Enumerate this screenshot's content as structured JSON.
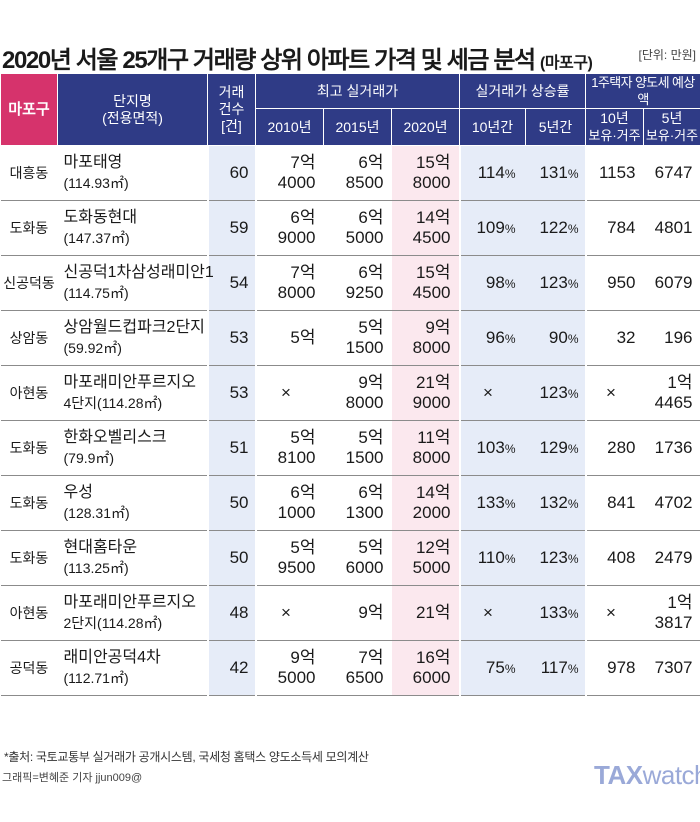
{
  "header": {
    "title": "2020년 서울 25개구 거래량 상위 아파트 가격 및 세금 분석",
    "title_sub": "(마포구)",
    "unit": "[단위: 만원]"
  },
  "table_header": {
    "district": "마포구",
    "name": "단지명",
    "name_sub": "(전용면적)",
    "count_1": "거래",
    "count_2": "건수",
    "count_3": "[건]",
    "price_group": "최고 실거래가",
    "y2010": "2010년",
    "y2015": "2015년",
    "y2020": "2020년",
    "rate_group": "실거래가 상승률",
    "r10": "10년간",
    "r5": "5년간",
    "tax_group": "1주택자 양도세 예상액",
    "t10_1": "10년",
    "t10_2": "보유·거주",
    "t5_1": "5년",
    "t5_2": "보유·거주"
  },
  "rows": [
    {
      "district": "대흥동",
      "name": "마포태영",
      "area": "(114.93㎡)",
      "count": "60",
      "p2010": [
        "7억",
        "4000"
      ],
      "p2015": [
        "6억",
        "8500"
      ],
      "p2020": [
        "15억",
        "8000"
      ],
      "r10": "114",
      "r5": "131",
      "t10": [
        "1153"
      ],
      "t5": [
        "6747"
      ]
    },
    {
      "district": "도화동",
      "name": "도화동현대",
      "area": "(147.37㎡)",
      "count": "59",
      "p2010": [
        "6억",
        "9000"
      ],
      "p2015": [
        "6억",
        "5000"
      ],
      "p2020": [
        "14억",
        "4500"
      ],
      "r10": "109",
      "r5": "122",
      "t10": [
        "784"
      ],
      "t5": [
        "4801"
      ]
    },
    {
      "district": "신공덕동",
      "name": "신공덕1차삼성래미안1",
      "area": "(114.75㎡)",
      "count": "54",
      "p2010": [
        "7억",
        "8000"
      ],
      "p2015": [
        "6억",
        "9250"
      ],
      "p2020": [
        "15억",
        "4500"
      ],
      "r10": "98",
      "r5": "123",
      "t10": [
        "950"
      ],
      "t5": [
        "6079"
      ]
    },
    {
      "district": "상암동",
      "name": "상암월드컵파크2단지",
      "area": "(59.92㎡)",
      "count": "53",
      "p2010": [
        "5억"
      ],
      "p2015": [
        "5억",
        "1500"
      ],
      "p2020": [
        "9억",
        "8000"
      ],
      "r10": "96",
      "r5": "90",
      "t10": [
        "32"
      ],
      "t5": [
        "196"
      ]
    },
    {
      "district": "아현동",
      "name": "마포래미안푸르지오",
      "area": "4단지(114.28㎡)",
      "count": "53",
      "p2010": [
        "×"
      ],
      "p2015": [
        "9억",
        "8000"
      ],
      "p2020": [
        "21억",
        "9000"
      ],
      "r10": "×",
      "r5": "123",
      "t10": [
        "×"
      ],
      "t5": [
        "1억",
        "4465"
      ]
    },
    {
      "district": "도화동",
      "name": "한화오벨리스크",
      "area": "(79.9㎡)",
      "count": "51",
      "p2010": [
        "5억",
        "8100"
      ],
      "p2015": [
        "5억",
        "1500"
      ],
      "p2020": [
        "11억",
        "8000"
      ],
      "r10": "103",
      "r5": "129",
      "t10": [
        "280"
      ],
      "t5": [
        "1736"
      ]
    },
    {
      "district": "도화동",
      "name": "우성",
      "area": "(128.31㎡)",
      "count": "50",
      "p2010": [
        "6억",
        "1000"
      ],
      "p2015": [
        "6억",
        "1300"
      ],
      "p2020": [
        "14억",
        "2000"
      ],
      "r10": "133",
      "r5": "132",
      "t10": [
        "841"
      ],
      "t5": [
        "4702"
      ]
    },
    {
      "district": "도화동",
      "name": "현대홈타운",
      "area": "(113.25㎡)",
      "count": "50",
      "p2010": [
        "5억",
        "9500"
      ],
      "p2015": [
        "5억",
        "6000"
      ],
      "p2020": [
        "12억",
        "5000"
      ],
      "r10": "110",
      "r5": "123",
      "t10": [
        "408"
      ],
      "t5": [
        "2479"
      ]
    },
    {
      "district": "아현동",
      "name": "마포래미안푸르지오",
      "area": "2단지(114.28㎡)",
      "count": "48",
      "p2010": [
        "×"
      ],
      "p2015": [
        "9억"
      ],
      "p2020": [
        "21억"
      ],
      "r10": "×",
      "r5": "133",
      "t10": [
        "×"
      ],
      "t5": [
        "1억",
        "3817"
      ]
    },
    {
      "district": "공덕동",
      "name": "래미안공덕4차",
      "area": "(112.71㎡)",
      "count": "42",
      "p2010": [
        "9억",
        "5000"
      ],
      "p2015": [
        "7억",
        "6500"
      ],
      "p2020": [
        "16억",
        "6000"
      ],
      "r10": "75",
      "r5": "117",
      "t10": [
        "978"
      ],
      "t5": [
        "7307"
      ]
    }
  ],
  "pct_sign": "%",
  "footer": {
    "source": "*출처: 국토교통부 실거래가 공개시스템, 국세청 홈택스 양도소득세 모의계산",
    "credit": "그래픽=변혜준 기자 jjun009@",
    "logo_a": "TAX",
    "logo_b": "watch"
  },
  "chart_data": {
    "type": "table",
    "title": "2020년 서울 25개구 거래량 상위 아파트 가격 및 세금 분석 (마포구)",
    "unit": "만원",
    "columns": [
      "마포구",
      "단지명 (전용면적)",
      "거래건수 [건]",
      "최고 실거래가 2010년",
      "최고 실거래가 2015년",
      "최고 실거래가 2020년",
      "실거래가 상승률 10년간",
      "실거래가 상승률 5년간",
      "1주택자 양도세 예상액 10년 보유·거주",
      "1주택자 양도세 예상액 5년 보유·거주"
    ],
    "rows": [
      [
        "대흥동",
        "마포태영 (114.93㎡)",
        60,
        "7억 4000",
        "6억 8500",
        "15억 8000",
        "114%",
        "131%",
        "1153",
        "6747"
      ],
      [
        "도화동",
        "도화동현대 (147.37㎡)",
        59,
        "6억 9000",
        "6억 5000",
        "14억 4500",
        "109%",
        "122%",
        "784",
        "4801"
      ],
      [
        "신공덕동",
        "신공덕1차삼성래미안1 (114.75㎡)",
        54,
        "7억 8000",
        "6억 9250",
        "15억 4500",
        "98%",
        "123%",
        "950",
        "6079"
      ],
      [
        "상암동",
        "상암월드컵파크2단지 (59.92㎡)",
        53,
        "5억",
        "5억 1500",
        "9억 8000",
        "96%",
        "90%",
        "32",
        "196"
      ],
      [
        "아현동",
        "마포래미안푸르지오 4단지(114.28㎡)",
        53,
        "×",
        "9억 8000",
        "21억 9000",
        "×",
        "123%",
        "×",
        "1억 4465"
      ],
      [
        "도화동",
        "한화오벨리스크 (79.9㎡)",
        51,
        "5억 8100",
        "5억 1500",
        "11억 8000",
        "103%",
        "129%",
        "280",
        "1736"
      ],
      [
        "도화동",
        "우성 (128.31㎡)",
        50,
        "6억 1000",
        "6억 1300",
        "14억 2000",
        "133%",
        "132%",
        "841",
        "4702"
      ],
      [
        "도화동",
        "현대홈타운 (113.25㎡)",
        50,
        "5억 9500",
        "5억 6000",
        "12억 5000",
        "110%",
        "123%",
        "408",
        "2479"
      ],
      [
        "아현동",
        "마포래미안푸르지오 2단지(114.28㎡)",
        48,
        "×",
        "9억",
        "21억",
        "×",
        "133%",
        "×",
        "1억 3817"
      ],
      [
        "공덕동",
        "래미안공덕4차 (112.71㎡)",
        42,
        "9억 5000",
        "7억 6500",
        "16억 6000",
        "75%",
        "117%",
        "978",
        "7307"
      ]
    ]
  }
}
